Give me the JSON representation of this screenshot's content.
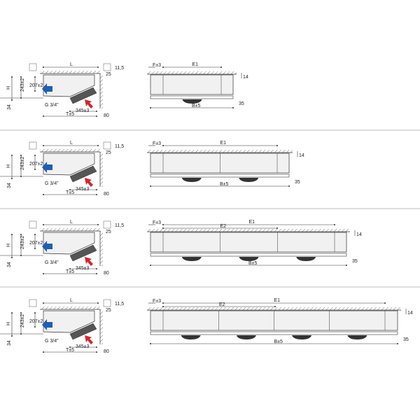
{
  "colors": {
    "line": "#333333",
    "body": "#f1f1f1",
    "fan": "#333333",
    "inlet_arrow": "#1f5fb5",
    "outlet_arrow": "#d9222a",
    "separator": "#bbbbbb"
  },
  "side_view_labels": {
    "L": "L",
    "H": "H",
    "d243": "243±2",
    "d207": "207±2",
    "d34": "34",
    "g": "G 3/4\"",
    "d345": "345±3",
    "T": "T±5",
    "d80": "80",
    "d115": "11,5",
    "d25": "25"
  },
  "front_view_labels": {
    "F": "F±3",
    "E1": "E1",
    "E2": "E2",
    "d14": "14",
    "d35": "35",
    "B": "B±5"
  },
  "rows": [
    {
      "fans": 1,
      "has_e2": false
    },
    {
      "fans": 2,
      "has_e2": false
    },
    {
      "fans": 3,
      "has_e2": true
    },
    {
      "fans": 4,
      "has_e2": true
    }
  ]
}
